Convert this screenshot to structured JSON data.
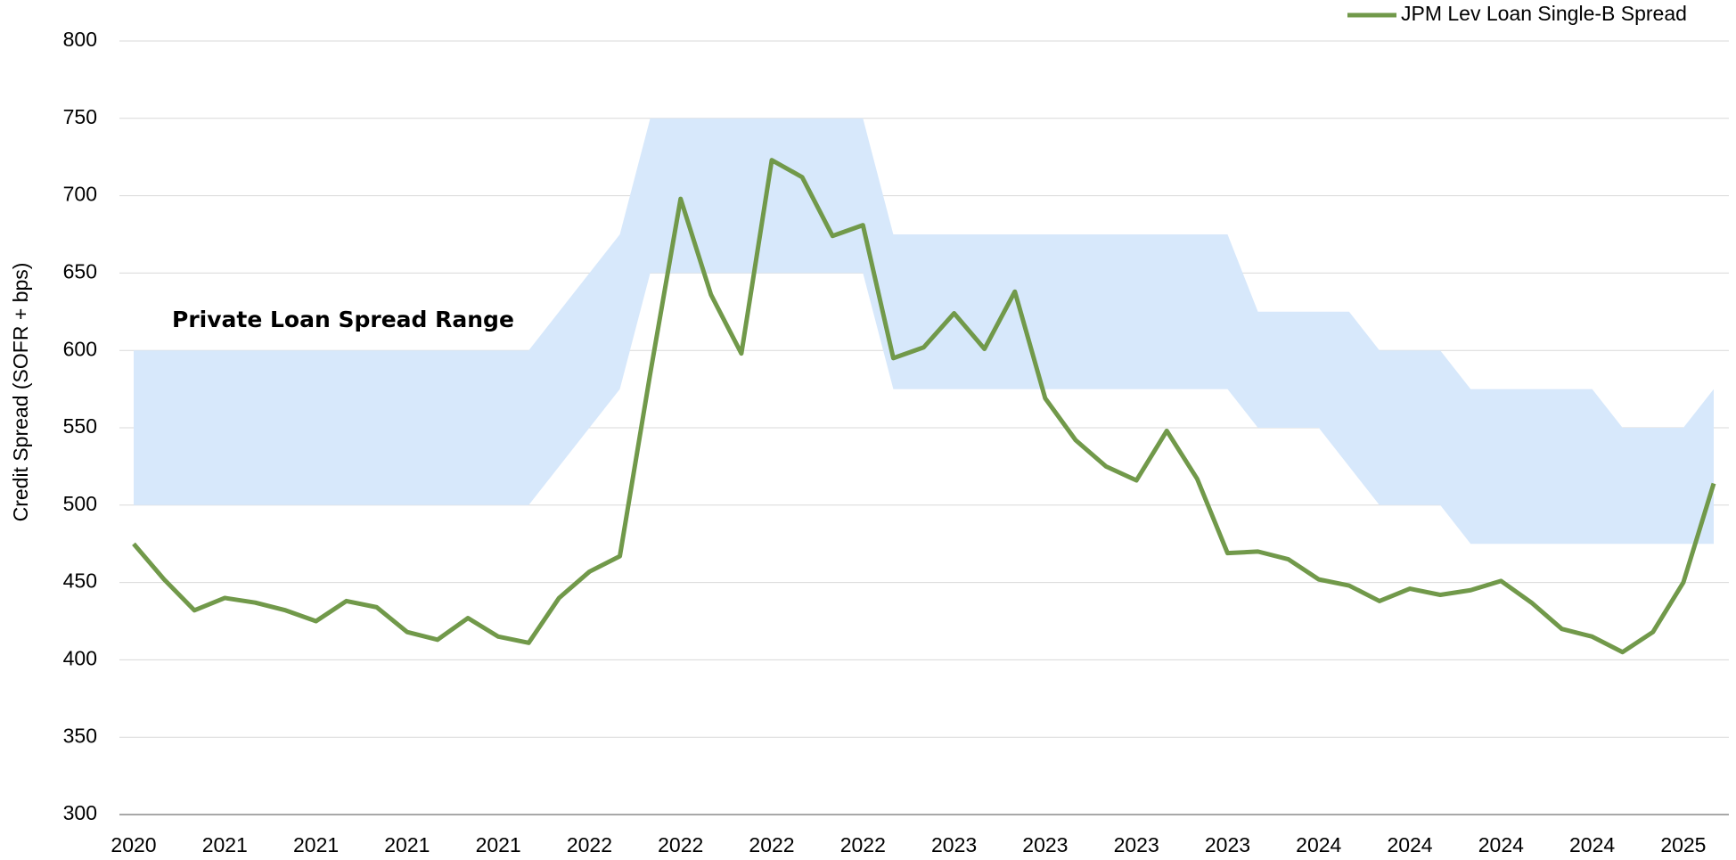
{
  "chart_data": {
    "type": "line",
    "y_label": "Credit Spread (SOFR + bps)",
    "annotation": "Private Loan Spread Range",
    "categories": [
      "2020",
      null,
      null,
      "2021",
      null,
      null,
      "2021",
      null,
      null,
      "2021",
      null,
      null,
      "2021",
      null,
      null,
      "2022",
      null,
      null,
      "2022",
      null,
      null,
      "2022",
      null,
      null,
      "2022",
      null,
      null,
      "2023",
      null,
      null,
      "2023",
      null,
      null,
      "2023",
      null,
      null,
      "2023",
      null,
      null,
      "2024",
      null,
      null,
      "2024",
      null,
      null,
      "2024",
      null,
      null,
      "2024",
      null,
      null,
      "2025",
      null
    ],
    "series": [
      {
        "name": "JPM Lev Loan Single-B Spread",
        "color": "#71994a",
        "values": [
          475,
          452,
          432,
          440,
          437,
          432,
          425,
          438,
          434,
          418,
          413,
          427,
          415,
          411,
          440,
          457,
          467,
          585,
          698,
          636,
          598,
          723,
          712,
          674,
          681,
          595,
          602,
          624,
          601,
          638,
          569,
          542,
          525,
          516,
          548,
          517,
          469,
          470,
          465,
          452,
          448,
          438,
          446,
          442,
          445,
          451,
          437,
          420,
          415,
          405,
          418,
          450,
          514
        ]
      }
    ],
    "range": {
      "color": "#d7e8fb",
      "lower": [
        500,
        500,
        500,
        500,
        500,
        500,
        500,
        500,
        500,
        500,
        500,
        500,
        500,
        500,
        525,
        550,
        575,
        650,
        650,
        650,
        650,
        650,
        650,
        650,
        650,
        575,
        575,
        575,
        575,
        575,
        575,
        575,
        575,
        575,
        575,
        575,
        575,
        550,
        550,
        550,
        525,
        500,
        500,
        500,
        475,
        475,
        475,
        475,
        475,
        475,
        475,
        475,
        475
      ],
      "upper": [
        600,
        600,
        600,
        600,
        600,
        600,
        600,
        600,
        600,
        600,
        600,
        600,
        600,
        600,
        625,
        650,
        675,
        750,
        750,
        750,
        750,
        750,
        750,
        750,
        750,
        675,
        675,
        675,
        675,
        675,
        675,
        675,
        675,
        675,
        675,
        675,
        675,
        625,
        625,
        625,
        625,
        600,
        600,
        600,
        575,
        575,
        575,
        575,
        575,
        550,
        550,
        550,
        575
      ]
    },
    "ylim": [
      300,
      800
    ],
    "yticks": [
      300,
      350,
      400,
      450,
      500,
      550,
      600,
      650,
      700,
      750,
      800
    ],
    "grid": true,
    "legend": "top-right"
  }
}
